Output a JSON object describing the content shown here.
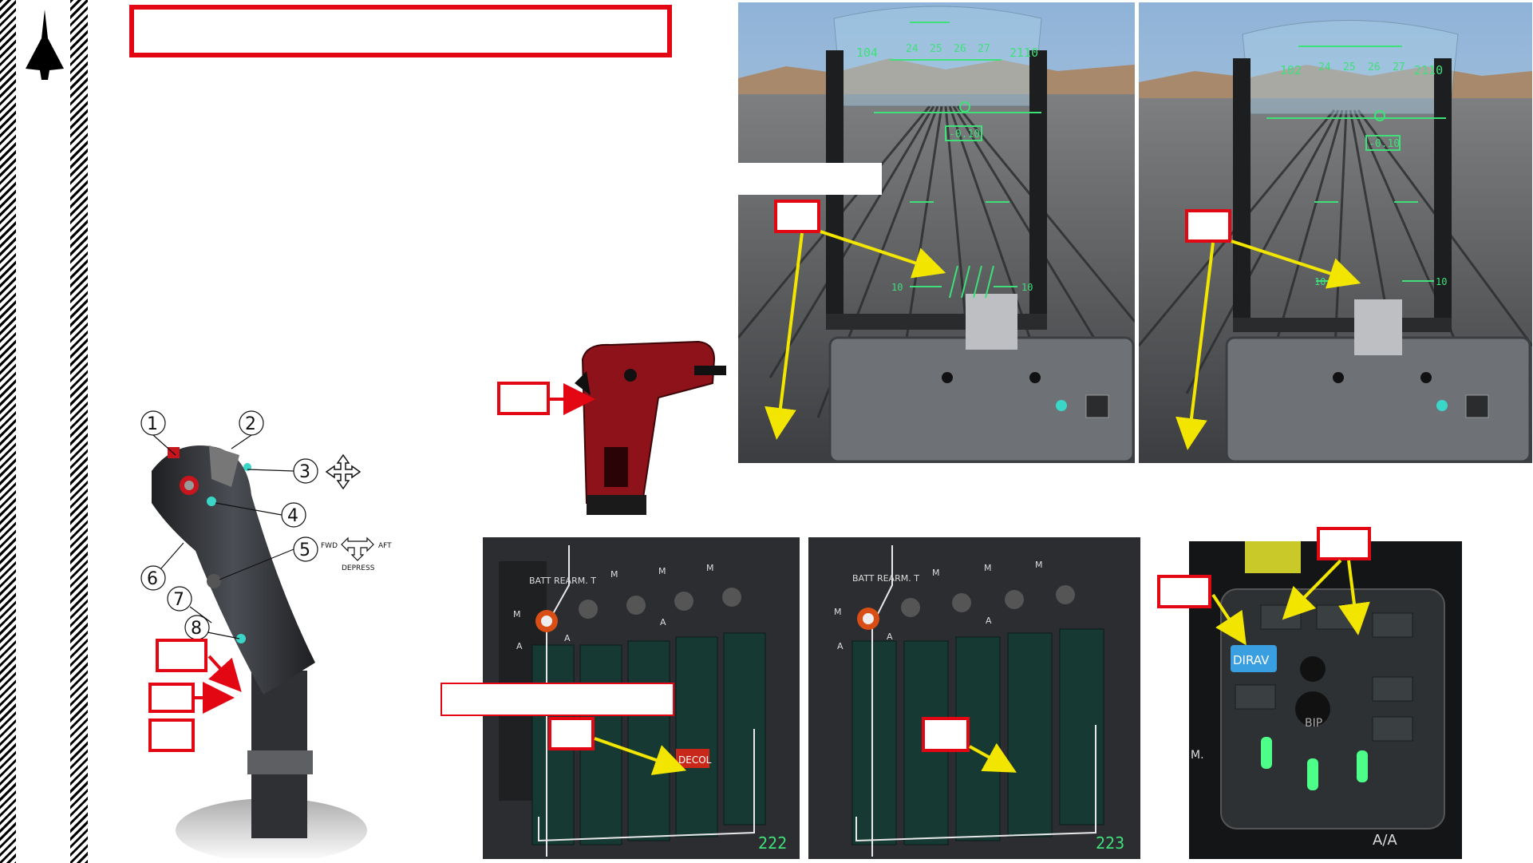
{
  "sidebar": {
    "logo_icon": "delta-wing-jet-icon"
  },
  "title_box": {
    "text": ""
  },
  "hud_left": {
    "heading_ticks": [
      "24",
      "25",
      "26",
      "27"
    ],
    "speed": "104",
    "altitude": "2110",
    "vertical_readout": "-0.10",
    "pitch_left": "10",
    "pitch_right": "10"
  },
  "hud_right": {
    "heading_ticks": [
      "24",
      "25",
      "26",
      "27"
    ],
    "speed": "102",
    "altitude": "2110",
    "vertical_readout": "-0.10",
    "pitch_left": "10",
    "pitch_right": "10"
  },
  "throttle": {
    "callouts": [
      "1",
      "2",
      "3",
      "4",
      "5",
      "6",
      "7",
      "8"
    ],
    "fwd": "FWD",
    "aft": "AFT",
    "depress": "DEPRESS"
  },
  "panel_left": {
    "header": "BATT REARM. T",
    "m_marks": [
      "M",
      "M",
      "M",
      "M"
    ],
    "a_marks": [
      "A",
      "A",
      "A"
    ],
    "warning": "DECOL",
    "counter": "222"
  },
  "panel_mid": {
    "header": "BATT REARM. T",
    "m_marks": [
      "M",
      "M",
      "M",
      "M"
    ],
    "a_marks": [
      "A",
      "A",
      "A"
    ],
    "counter": "223"
  },
  "panel_right": {
    "dira": "DIRAV",
    "bip": "BIP",
    "m": "M.",
    "aa": "A/A"
  },
  "colors": {
    "callout_red": "#e30613",
    "arrow_yellow": "#f2e600",
    "hud_green": "#3fe07a"
  }
}
